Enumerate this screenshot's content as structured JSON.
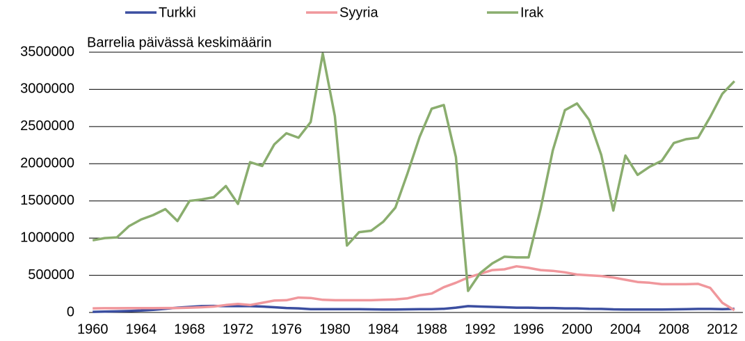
{
  "chart_data": {
    "type": "line",
    "subtitle": "Barrelia päivässä keskimäärin",
    "x": [
      1960,
      1961,
      1962,
      1963,
      1964,
      1965,
      1966,
      1967,
      1968,
      1969,
      1970,
      1971,
      1972,
      1973,
      1974,
      1975,
      1976,
      1977,
      1978,
      1979,
      1980,
      1981,
      1982,
      1983,
      1984,
      1985,
      1986,
      1987,
      1988,
      1989,
      1990,
      1991,
      1992,
      1993,
      1994,
      1995,
      1996,
      1997,
      1998,
      1999,
      2000,
      2001,
      2002,
      2003,
      2004,
      2005,
      2006,
      2007,
      2008,
      2009,
      2010,
      2011,
      2012,
      2013
    ],
    "series": [
      {
        "name": "Turkki",
        "color": "#3b4ea0",
        "values": [
          8000,
          12000,
          15000,
          20000,
          25000,
          35000,
          50000,
          65000,
          75000,
          85000,
          88000,
          85000,
          85000,
          85000,
          80000,
          70000,
          60000,
          55000,
          45000,
          45000,
          45000,
          45000,
          45000,
          42000,
          40000,
          40000,
          42000,
          45000,
          45000,
          50000,
          65000,
          85000,
          80000,
          75000,
          70000,
          65000,
          65000,
          60000,
          60000,
          55000,
          55000,
          50000,
          48000,
          42000,
          40000,
          40000,
          40000,
          40000,
          42000,
          45000,
          48000,
          48000,
          45000,
          50000
        ]
      },
      {
        "name": "Syyria",
        "color": "#f0979c",
        "values": [
          55000,
          57000,
          57000,
          58000,
          58000,
          58000,
          60000,
          60000,
          65000,
          70000,
          80000,
          100000,
          115000,
          100000,
          130000,
          160000,
          165000,
          200000,
          195000,
          170000,
          165000,
          165000,
          165000,
          165000,
          170000,
          175000,
          190000,
          230000,
          255000,
          340000,
          400000,
          470000,
          520000,
          570000,
          580000,
          620000,
          600000,
          570000,
          560000,
          540000,
          510000,
          500000,
          490000,
          470000,
          440000,
          410000,
          400000,
          380000,
          380000,
          380000,
          385000,
          330000,
          130000,
          30000
        ]
      },
      {
        "name": "Irak",
        "color": "#8aad6e",
        "values": [
          970000,
          1000000,
          1010000,
          1160000,
          1250000,
          1310000,
          1390000,
          1230000,
          1500000,
          1520000,
          1550000,
          1700000,
          1460000,
          2020000,
          1970000,
          2260000,
          2410000,
          2350000,
          2560000,
          3480000,
          2640000,
          900000,
          1080000,
          1100000,
          1220000,
          1410000,
          1870000,
          2360000,
          2740000,
          2790000,
          2090000,
          290000,
          530000,
          660000,
          750000,
          740000,
          740000,
          1400000,
          2180000,
          2720000,
          2810000,
          2590000,
          2120000,
          1370000,
          2110000,
          1850000,
          1960000,
          2040000,
          2280000,
          2330000,
          2350000,
          2630000,
          2940000,
          3110000
        ]
      }
    ],
    "xlim": [
      1959.7,
      2013.7
    ],
    "xticks": [
      1960,
      1964,
      1968,
      1972,
      1976,
      1980,
      1984,
      1988,
      1992,
      1996,
      2000,
      2004,
      2008,
      2012
    ],
    "ylim": [
      0,
      3500000
    ],
    "yticks": [
      0,
      500000,
      1000000,
      1500000,
      2000000,
      2500000,
      3000000,
      3500000
    ],
    "grid": true,
    "legend": "top"
  }
}
